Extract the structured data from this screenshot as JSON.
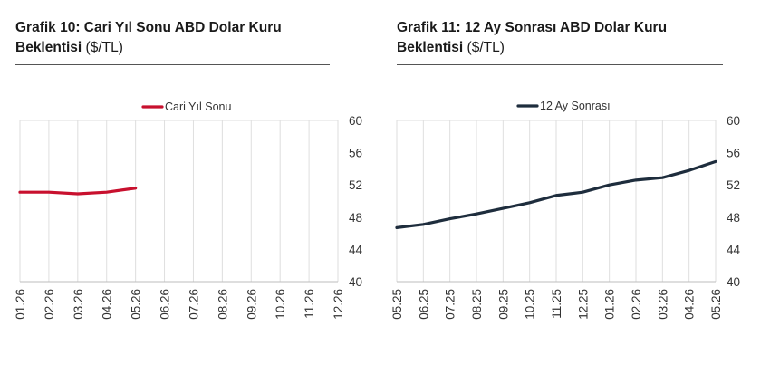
{
  "charts": [
    {
      "title_bold": "Grafik 10: Cari Yıl Sonu ABD Dolar Kuru",
      "title_bold_2": "Beklentisi",
      "title_unit": "($/TL)"
    },
    {
      "title_bold": "Grafik 11: 12 Ay Sonrası ABD Dolar Kuru",
      "title_bold_2": "Beklentisi",
      "title_unit": "($/TL)"
    }
  ],
  "chart_data": [
    {
      "type": "line",
      "title": "Grafik 10: Cari Yıl Sonu ABD Dolar Kuru Beklentisi ($/TL)",
      "categories": [
        "01.26",
        "02.26",
        "03.26",
        "04.26",
        "05.26",
        "06.26",
        "07.26",
        "08.26",
        "09.26",
        "10.26",
        "11.26",
        "12.26"
      ],
      "series": [
        {
          "name": "Cari Yıl Sonu",
          "color": "#c8102e",
          "values": [
            51.1,
            51.1,
            50.9,
            51.1,
            51.6,
            null,
            null,
            null,
            null,
            null,
            null,
            null
          ]
        }
      ],
      "ylim": [
        40,
        60
      ],
      "yticks": [
        40,
        44,
        48,
        52,
        56,
        60
      ],
      "y_axis_side": "right",
      "grid": true,
      "legend": "top"
    },
    {
      "type": "line",
      "title": "Grafik 11: 12 Ay Sonrası ABD Dolar Kuru Beklentisi ($/TL)",
      "categories": [
        "05.25",
        "06.25",
        "07.25",
        "08.25",
        "09.25",
        "10.25",
        "11.25",
        "12.25",
        "01.26",
        "02.26",
        "03.26",
        "04.26",
        "05.26"
      ],
      "series": [
        {
          "name": "12 Ay Sonrası",
          "color": "#1e2d3d",
          "values": [
            46.7,
            47.1,
            47.8,
            48.4,
            49.1,
            49.8,
            50.7,
            51.1,
            52.0,
            52.6,
            52.9,
            53.8,
            54.9
          ]
        }
      ],
      "ylim": [
        40,
        60
      ],
      "yticks": [
        40,
        44,
        48,
        52,
        56,
        60
      ],
      "y_axis_side": "right",
      "grid": true,
      "legend": "top"
    }
  ]
}
